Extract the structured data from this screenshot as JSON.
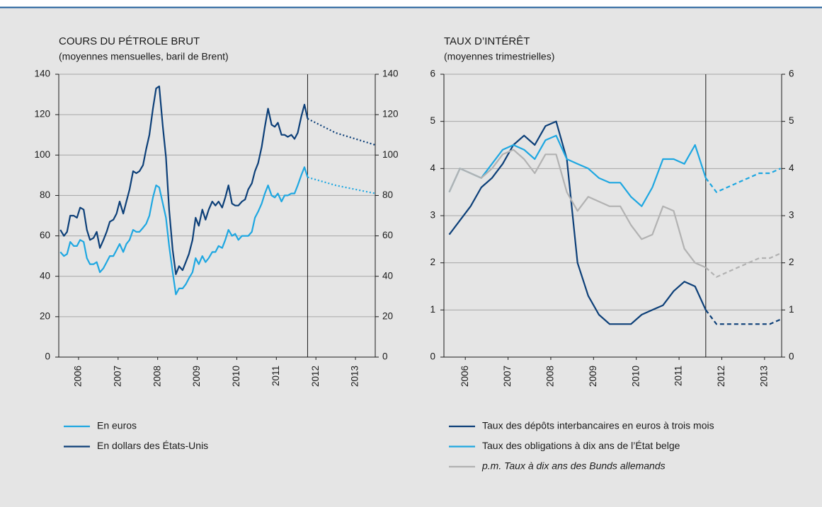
{
  "chart_data": [
    {
      "type": "line",
      "title": "COURS DU PÉTROLE BRUT",
      "subtitle": "(moyennes mensuelles, baril de Brent)",
      "x": [
        2006.04,
        2006.13,
        2006.21,
        2006.29,
        2006.38,
        2006.46,
        2006.54,
        2006.63,
        2006.71,
        2006.79,
        2006.88,
        2006.96,
        2007.04,
        2007.13,
        2007.21,
        2007.29,
        2007.38,
        2007.46,
        2007.54,
        2007.63,
        2007.71,
        2007.79,
        2007.88,
        2007.96,
        2008.04,
        2008.13,
        2008.21,
        2008.29,
        2008.38,
        2008.46,
        2008.54,
        2008.63,
        2008.71,
        2008.79,
        2008.88,
        2008.96,
        2009.04,
        2009.13,
        2009.21,
        2009.29,
        2009.38,
        2009.46,
        2009.54,
        2009.63,
        2009.71,
        2009.79,
        2009.88,
        2009.96,
        2010.04,
        2010.13,
        2010.21,
        2010.29,
        2010.38,
        2010.46,
        2010.54,
        2010.63,
        2010.71,
        2010.79,
        2010.88,
        2010.96,
        2011.04,
        2011.13,
        2011.21,
        2011.29,
        2011.38,
        2011.46,
        2011.54,
        2011.63,
        2011.71,
        2011.79,
        2011.88,
        2011.96,
        2012.04,
        2012.13,
        2012.21,
        2012.29
      ],
      "forecast_x": [
        2012.29,
        2013,
        2014
      ],
      "forecast_style": "dotted",
      "series": [
        {
          "name": "En euros",
          "color": "#1ea7e1",
          "values": [
            52,
            50,
            51,
            57,
            55,
            55,
            58,
            57,
            49,
            46,
            46,
            47,
            42,
            44,
            47,
            50,
            50,
            53,
            56,
            52,
            56,
            58,
            63,
            62,
            62,
            64,
            66,
            70,
            79,
            85,
            84,
            76,
            69,
            55,
            42,
            31,
            34,
            34,
            36,
            39,
            42,
            49,
            46,
            50,
            47,
            49,
            52,
            52,
            55,
            54,
            58,
            63,
            60,
            61,
            58,
            60,
            60,
            60,
            62,
            69,
            72,
            76,
            81,
            85,
            80,
            79,
            81,
            77,
            80,
            80,
            81,
            81,
            85,
            90,
            94,
            89
          ],
          "forecast": [
            89,
            85,
            81
          ]
        },
        {
          "name": "En dollars des États-Unis",
          "color": "#0c3f78",
          "values": [
            63,
            60,
            62,
            70,
            70,
            69,
            74,
            73,
            63,
            58,
            59,
            62,
            54,
            58,
            62,
            67,
            68,
            71,
            77,
            71,
            77,
            83,
            92,
            91,
            92,
            95,
            103,
            110,
            123,
            133,
            134,
            114,
            99,
            73,
            53,
            41,
            45,
            43,
            47,
            51,
            58,
            69,
            65,
            73,
            68,
            73,
            77,
            75,
            77,
            74,
            79,
            85,
            76,
            75,
            75,
            77,
            78,
            83,
            86,
            92,
            96,
            104,
            114,
            123,
            115,
            114,
            116,
            110,
            110,
            109,
            110,
            108,
            111,
            119,
            125,
            118
          ],
          "forecast": [
            118,
            111,
            105
          ]
        }
      ],
      "xlim": [
        2006,
        2014
      ],
      "xticks": [
        {
          "value": 2006.5,
          "label": "2006"
        },
        {
          "value": 2007.5,
          "label": "2007"
        },
        {
          "value": 2008.5,
          "label": "2008"
        },
        {
          "value": 2009.5,
          "label": "2009"
        },
        {
          "value": 2010.5,
          "label": "2010"
        },
        {
          "value": 2011.5,
          "label": "2011"
        },
        {
          "value": 2012.5,
          "label": "2012"
        },
        {
          "value": 2013.5,
          "label": "2013"
        }
      ],
      "ylim": [
        0,
        140
      ],
      "yticks": [
        0,
        20,
        40,
        60,
        80,
        100,
        120,
        140
      ],
      "grid": true
    },
    {
      "type": "line",
      "title": "TAUX D’INTÉRÊT",
      "subtitle": "(moyennes trimestrielles)",
      "x": [
        2006.125,
        2006.375,
        2006.625,
        2006.875,
        2007.125,
        2007.375,
        2007.625,
        2007.875,
        2008.125,
        2008.375,
        2008.625,
        2008.875,
        2009.125,
        2009.375,
        2009.625,
        2009.875,
        2010.125,
        2010.375,
        2010.625,
        2010.875,
        2011.125,
        2011.375,
        2011.625,
        2011.875,
        2012.125
      ],
      "forecast_x": [
        2012.125,
        2012.375,
        2012.625,
        2012.875,
        2013.125,
        2013.375,
        2013.625,
        2013.875
      ],
      "forecast_style": "dashed",
      "series": [
        {
          "name": "Taux des dépôts interbancaires en euros à trois mois",
          "color": "#0c3f78",
          "values": [
            2.6,
            2.9,
            3.2,
            3.6,
            3.8,
            4.1,
            4.5,
            4.7,
            4.5,
            4.9,
            5.0,
            4.2,
            2.0,
            1.3,
            0.9,
            0.7,
            0.7,
            0.7,
            0.9,
            1.0,
            1.1,
            1.4,
            1.6,
            1.5,
            1.0
          ],
          "forecast": [
            1.0,
            0.7,
            0.7,
            0.7,
            0.7,
            0.7,
            0.7,
            0.8
          ]
        },
        {
          "name": "Taux des obligations à dix ans de l’État belge",
          "color": "#1ea7e1",
          "values": [
            3.5,
            4.0,
            3.9,
            3.8,
            4.1,
            4.4,
            4.5,
            4.4,
            4.2,
            4.6,
            4.7,
            4.2,
            4.1,
            4.0,
            3.8,
            3.7,
            3.7,
            3.4,
            3.2,
            3.6,
            4.2,
            4.2,
            4.1,
            4.5,
            3.8
          ],
          "forecast": [
            3.8,
            3.5,
            3.6,
            3.7,
            3.8,
            3.9,
            3.9,
            4.0
          ]
        },
        {
          "name": "p.m. Taux à dix ans des Bunds allemands",
          "color": "#b2b2b2",
          "italic": true,
          "values": [
            3.5,
            4.0,
            3.9,
            3.8,
            4.0,
            4.3,
            4.4,
            4.2,
            3.9,
            4.3,
            4.3,
            3.5,
            3.1,
            3.4,
            3.3,
            3.2,
            3.2,
            2.8,
            2.5,
            2.6,
            3.2,
            3.1,
            2.3,
            2.0,
            1.9
          ],
          "forecast": [
            1.9,
            1.7,
            1.8,
            1.9,
            2.0,
            2.1,
            2.1,
            2.2
          ]
        }
      ],
      "xlim": [
        2006,
        2013.9
      ],
      "xticks": [
        {
          "value": 2006.5,
          "label": "2006"
        },
        {
          "value": 2007.5,
          "label": "2007"
        },
        {
          "value": 2008.5,
          "label": "2008"
        },
        {
          "value": 2009.5,
          "label": "2009"
        },
        {
          "value": 2010.5,
          "label": "2010"
        },
        {
          "value": 2011.5,
          "label": "2011"
        },
        {
          "value": 2012.5,
          "label": "2012"
        },
        {
          "value": 2013.5,
          "label": "2013"
        }
      ],
      "ylim": [
        0,
        6
      ],
      "yticks": [
        0,
        1,
        2,
        3,
        4,
        5,
        6
      ],
      "grid": true
    }
  ]
}
